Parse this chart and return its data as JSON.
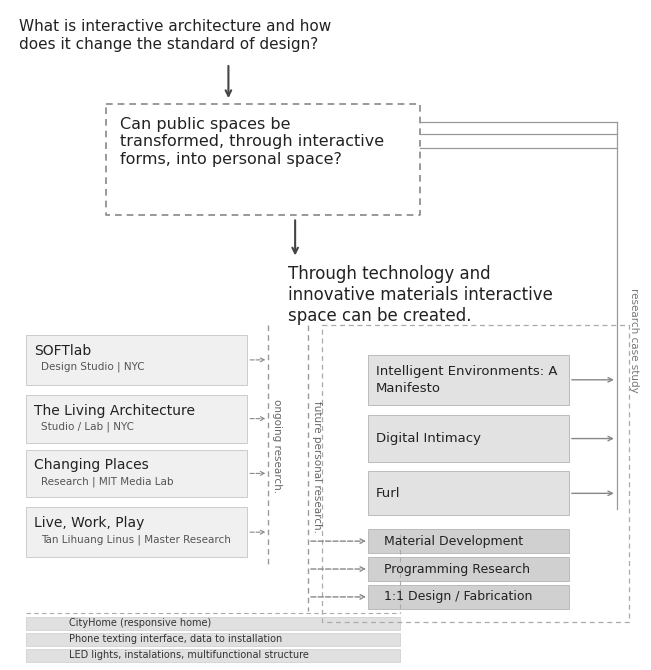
{
  "bg_color": "#ffffff",
  "text_color": "#333333",
  "dashed_color": "#888888",
  "arrow_color": "#444444",
  "title_question": "What is interactive architecture and how\ndoes it change the standard of design?",
  "research_question": "Can public spaces be\ntransformed, through interactive\nforms, into personal space?",
  "thesis_statement": "Through technology and\ninnovative materials interactive\nspace can be created.",
  "left_boxes": [
    {
      "title": "SOFTlab",
      "subtitle": "Design Studio | NYC"
    },
    {
      "title": "The Living Architecture",
      "subtitle": "Studio / Lab | NYC"
    },
    {
      "title": "Changing Places",
      "subtitle": "Research | MIT Media Lab"
    },
    {
      "title": "Live, Work, Play",
      "subtitle": "Tan Lihuang Linus | Master Research"
    }
  ],
  "right_boxes_top": [
    {
      "text": "Intelligent Environments: A\nManifesto"
    },
    {
      "text": "Digital Intimacy"
    },
    {
      "text": "Furl"
    }
  ],
  "right_boxes_bottom": [
    {
      "text": "Material Development"
    },
    {
      "text": "Programming Research"
    },
    {
      "text": "1:1 Design / Fabrication"
    }
  ],
  "bottom_boxes": [
    {
      "text": "CityHome (responsive home)"
    },
    {
      "text": "Phone texting interface, data to installation"
    },
    {
      "text": "LED lights, instalations, multifunctional structure"
    }
  ],
  "label_ongoing": "ongoing research.",
  "label_future": "future personal research.",
  "label_case_study": "research case study"
}
